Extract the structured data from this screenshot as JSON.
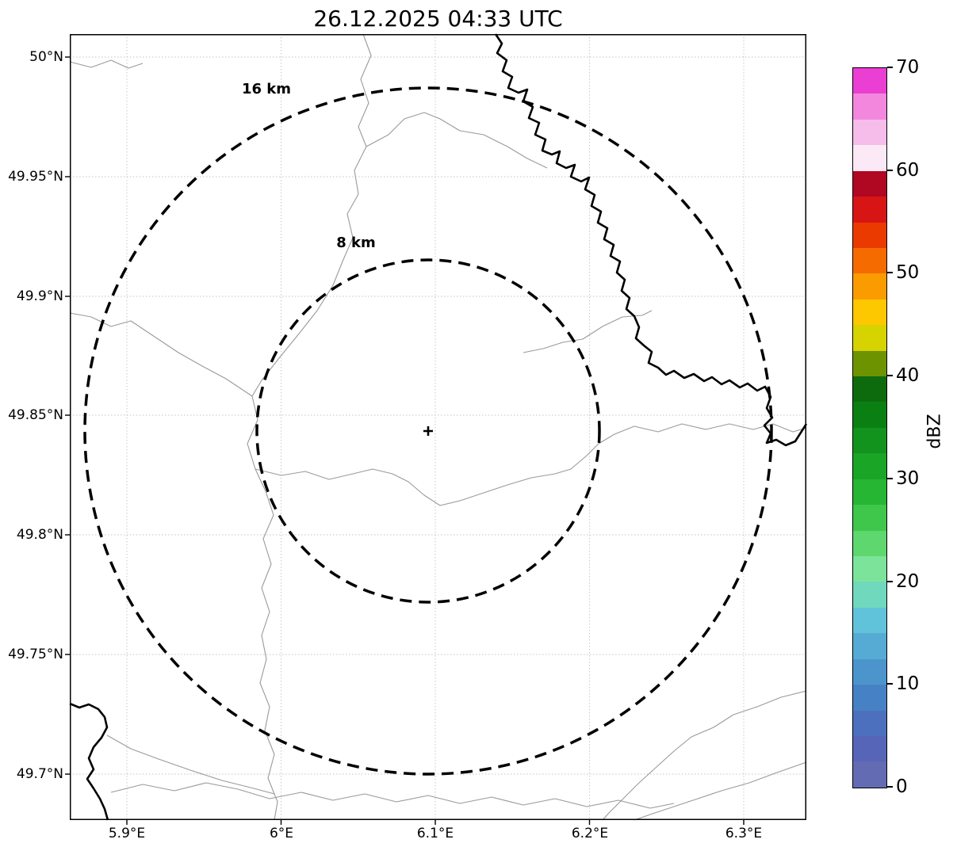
{
  "title": "26.12.2025 04:33 UTC",
  "axes": {
    "x_ticks": [
      {
        "label": "5.9°E"
      },
      {
        "label": "6°E"
      },
      {
        "label": "6.1°E"
      },
      {
        "label": "6.2°E"
      },
      {
        "label": "6.3°E"
      }
    ],
    "y_ticks": [
      {
        "label": "50°N"
      },
      {
        "label": "49.95°N"
      },
      {
        "label": "49.9°N"
      },
      {
        "label": "49.85°N"
      },
      {
        "label": "49.8°N"
      },
      {
        "label": "49.75°N"
      },
      {
        "label": "49.7°N"
      }
    ]
  },
  "rings": [
    {
      "label": "16 km",
      "radius_km": 16
    },
    {
      "label": "8 km",
      "radius_km": 8
    }
  ],
  "marker": {
    "symbol": "+",
    "name": "radar site center"
  },
  "colorbar": {
    "label": "dBZ",
    "min": 0,
    "max": 70,
    "ticks": [
      "0",
      "10",
      "20",
      "30",
      "40",
      "50",
      "60",
      "70"
    ],
    "colors_bottom_to_top": [
      "#636bb2",
      "#5765b8",
      "#4d70be",
      "#4781c5",
      "#4c95cc",
      "#56abd4",
      "#61c3da",
      "#6fd8bd",
      "#7ce49a",
      "#5ed76e",
      "#3fc74b",
      "#26b634",
      "#1aa527",
      "#12931d",
      "#0a8013",
      "#0d6b0d",
      "#6e9300",
      "#d6d300",
      "#fdc800",
      "#fa9b00",
      "#f56b00",
      "#ea3a00",
      "#d81515",
      "#b00723",
      "#fbe9f6",
      "#f7bdea",
      "#f387de",
      "#ea3fd2"
    ]
  },
  "chart_data": {
    "type": "map",
    "title": "26.12.2025 04:33 UTC",
    "map": {
      "lon_tick_labels": [
        "5.9°E",
        "6°E",
        "6.1°E",
        "6.2°E",
        "6.3°E"
      ],
      "lat_tick_labels": [
        "50°N",
        "49.95°N",
        "49.9°N",
        "49.85°N",
        "49.8°N",
        "49.75°N",
        "49.7°N"
      ],
      "range_rings_km": [
        8,
        16
      ],
      "ring_labels": [
        "8 km",
        "16 km"
      ],
      "center_marker_symbol": "+",
      "radar_echoes_visible": false,
      "grid": "dotted lat/lon graticule",
      "line_layers": [
        "thin gray administrative boundaries",
        "thick black national border (river-like, upper right and lower left)"
      ]
    },
    "colorbar": {
      "label": "dBZ",
      "range": [
        0,
        70
      ],
      "ticks": [
        0,
        10,
        20,
        30,
        40,
        50,
        60,
        70
      ],
      "orientation": "vertical",
      "position": "right"
    }
  }
}
